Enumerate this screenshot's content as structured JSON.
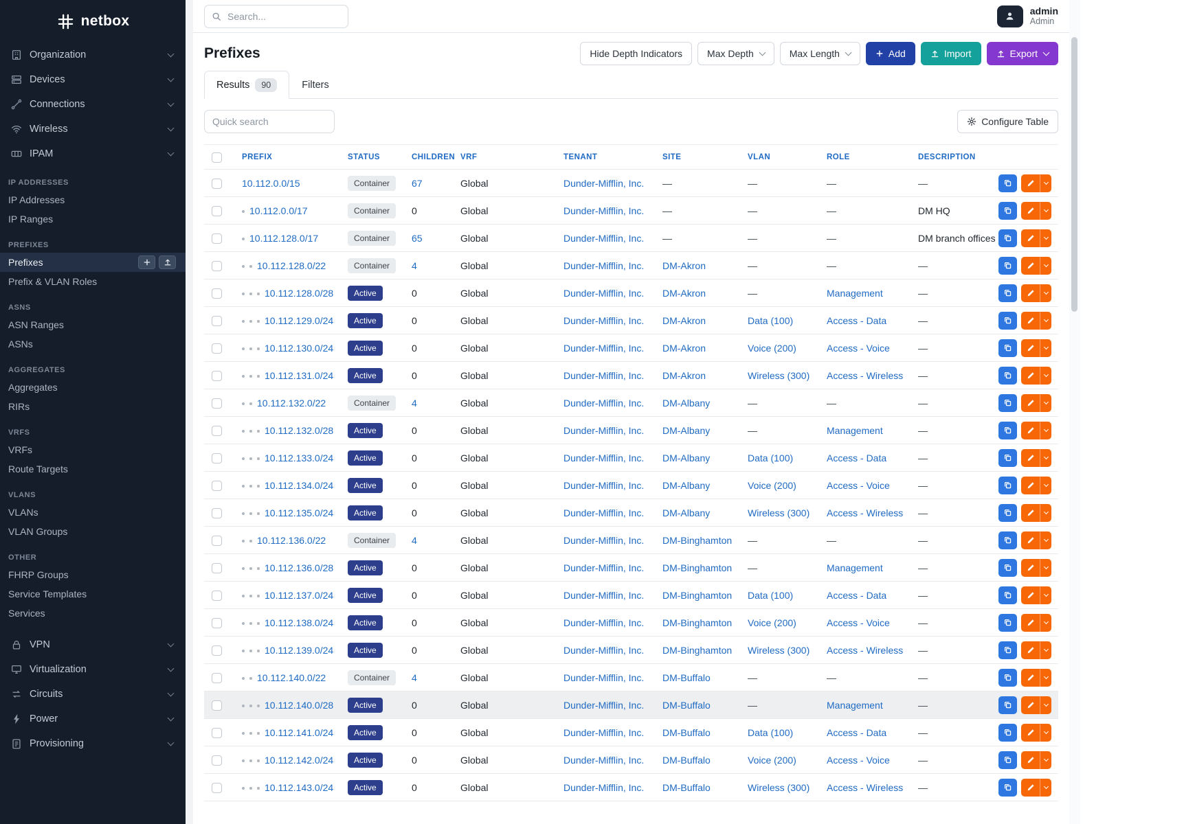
{
  "topbar": {
    "search_placeholder": "Search...",
    "user_name": "admin",
    "user_role": "Admin"
  },
  "sidebar": {
    "brand": "netbox",
    "top_items": [
      {
        "label": "Organization",
        "icon": "organization-icon"
      },
      {
        "label": "Devices",
        "icon": "devices-icon"
      },
      {
        "label": "Connections",
        "icon": "connections-icon"
      },
      {
        "label": "Wireless",
        "icon": "wireless-icon"
      },
      {
        "label": "IPAM",
        "icon": "ipam-icon"
      }
    ],
    "sections": [
      {
        "header": "IP ADDRESSES",
        "items": [
          {
            "label": "IP Addresses"
          },
          {
            "label": "IP Ranges"
          }
        ]
      },
      {
        "header": "PREFIXES",
        "items": [
          {
            "label": "Prefixes",
            "active": true
          },
          {
            "label": "Prefix & VLAN Roles"
          }
        ]
      },
      {
        "header": "ASNS",
        "items": [
          {
            "label": "ASN Ranges"
          },
          {
            "label": "ASNs"
          }
        ]
      },
      {
        "header": "AGGREGATES",
        "items": [
          {
            "label": "Aggregates"
          },
          {
            "label": "RIRs"
          }
        ]
      },
      {
        "header": "VRFS",
        "items": [
          {
            "label": "VRFs"
          },
          {
            "label": "Route Targets"
          }
        ]
      },
      {
        "header": "VLANS",
        "items": [
          {
            "label": "VLANs"
          },
          {
            "label": "VLAN Groups"
          }
        ]
      },
      {
        "header": "OTHER",
        "items": [
          {
            "label": "FHRP Groups"
          },
          {
            "label": "Service Templates"
          },
          {
            "label": "Services"
          }
        ]
      }
    ],
    "bottom_items": [
      {
        "label": "VPN",
        "icon": "vpn-icon"
      },
      {
        "label": "Virtualization",
        "icon": "virtualization-icon"
      },
      {
        "label": "Circuits",
        "icon": "circuits-icon"
      },
      {
        "label": "Power",
        "icon": "power-icon"
      },
      {
        "label": "Provisioning",
        "icon": "provisioning-icon"
      }
    ]
  },
  "page": {
    "title": "Prefixes",
    "tabs": [
      {
        "label": "Results",
        "badge": "90",
        "active": true
      },
      {
        "label": "Filters",
        "active": false
      }
    ],
    "toolbar": {
      "hide_depth_label": "Hide Depth Indicators",
      "max_depth_label": "Max Depth",
      "max_length_label": "Max Length",
      "add_label": "Add",
      "import_label": "Import",
      "export_label": "Export"
    },
    "quick_search_placeholder": "Quick search",
    "configure_table_label": "Configure Table"
  },
  "table": {
    "columns": [
      "PREFIX",
      "STATUS",
      "CHILDREN",
      "VRF",
      "TENANT",
      "SITE",
      "VLAN",
      "ROLE",
      "DESCRIPTION"
    ],
    "rows": [
      {
        "depth": 0,
        "prefix": "10.112.0.0/15",
        "status": "Container",
        "children": "67",
        "vrf": "Global",
        "tenant": "Dunder-Mifflin, Inc.",
        "site": "—",
        "vlan": "—",
        "role": "—",
        "description": "—"
      },
      {
        "depth": 1,
        "prefix": "10.112.0.0/17",
        "status": "Container",
        "children": "0",
        "vrf": "Global",
        "tenant": "Dunder-Mifflin, Inc.",
        "site": "—",
        "vlan": "—",
        "role": "—",
        "description": "DM HQ"
      },
      {
        "depth": 1,
        "prefix": "10.112.128.0/17",
        "status": "Container",
        "children": "65",
        "vrf": "Global",
        "tenant": "Dunder-Mifflin, Inc.",
        "site": "—",
        "vlan": "—",
        "role": "—",
        "description": "DM branch offices"
      },
      {
        "depth": 2,
        "prefix": "10.112.128.0/22",
        "status": "Container",
        "children": "4",
        "vrf": "Global",
        "tenant": "Dunder-Mifflin, Inc.",
        "site": "DM-Akron",
        "vlan": "—",
        "role": "—",
        "description": "—"
      },
      {
        "depth": 3,
        "prefix": "10.112.128.0/28",
        "status": "Active",
        "children": "0",
        "vrf": "Global",
        "tenant": "Dunder-Mifflin, Inc.",
        "site": "DM-Akron",
        "vlan": "—",
        "role": "Management",
        "description": "—"
      },
      {
        "depth": 3,
        "prefix": "10.112.129.0/24",
        "status": "Active",
        "children": "0",
        "vrf": "Global",
        "tenant": "Dunder-Mifflin, Inc.",
        "site": "DM-Akron",
        "vlan": "Data (100)",
        "role": "Access - Data",
        "description": "—"
      },
      {
        "depth": 3,
        "prefix": "10.112.130.0/24",
        "status": "Active",
        "children": "0",
        "vrf": "Global",
        "tenant": "Dunder-Mifflin, Inc.",
        "site": "DM-Akron",
        "vlan": "Voice (200)",
        "role": "Access - Voice",
        "description": "—"
      },
      {
        "depth": 3,
        "prefix": "10.112.131.0/24",
        "status": "Active",
        "children": "0",
        "vrf": "Global",
        "tenant": "Dunder-Mifflin, Inc.",
        "site": "DM-Akron",
        "vlan": "Wireless (300)",
        "role": "Access - Wireless",
        "description": "—"
      },
      {
        "depth": 2,
        "prefix": "10.112.132.0/22",
        "status": "Container",
        "children": "4",
        "vrf": "Global",
        "tenant": "Dunder-Mifflin, Inc.",
        "site": "DM-Albany",
        "vlan": "—",
        "role": "—",
        "description": "—"
      },
      {
        "depth": 3,
        "prefix": "10.112.132.0/28",
        "status": "Active",
        "children": "0",
        "vrf": "Global",
        "tenant": "Dunder-Mifflin, Inc.",
        "site": "DM-Albany",
        "vlan": "—",
        "role": "Management",
        "description": "—"
      },
      {
        "depth": 3,
        "prefix": "10.112.133.0/24",
        "status": "Active",
        "children": "0",
        "vrf": "Global",
        "tenant": "Dunder-Mifflin, Inc.",
        "site": "DM-Albany",
        "vlan": "Data (100)",
        "role": "Access - Data",
        "description": "—"
      },
      {
        "depth": 3,
        "prefix": "10.112.134.0/24",
        "status": "Active",
        "children": "0",
        "vrf": "Global",
        "tenant": "Dunder-Mifflin, Inc.",
        "site": "DM-Albany",
        "vlan": "Voice (200)",
        "role": "Access - Voice",
        "description": "—"
      },
      {
        "depth": 3,
        "prefix": "10.112.135.0/24",
        "status": "Active",
        "children": "0",
        "vrf": "Global",
        "tenant": "Dunder-Mifflin, Inc.",
        "site": "DM-Albany",
        "vlan": "Wireless (300)",
        "role": "Access - Wireless",
        "description": "—"
      },
      {
        "depth": 2,
        "prefix": "10.112.136.0/22",
        "status": "Container",
        "children": "4",
        "vrf": "Global",
        "tenant": "Dunder-Mifflin, Inc.",
        "site": "DM-Binghamton",
        "vlan": "—",
        "role": "—",
        "description": "—"
      },
      {
        "depth": 3,
        "prefix": "10.112.136.0/28",
        "status": "Active",
        "children": "0",
        "vrf": "Global",
        "tenant": "Dunder-Mifflin, Inc.",
        "site": "DM-Binghamton",
        "vlan": "—",
        "role": "Management",
        "description": "—"
      },
      {
        "depth": 3,
        "prefix": "10.112.137.0/24",
        "status": "Active",
        "children": "0",
        "vrf": "Global",
        "tenant": "Dunder-Mifflin, Inc.",
        "site": "DM-Binghamton",
        "vlan": "Data (100)",
        "role": "Access - Data",
        "description": "—"
      },
      {
        "depth": 3,
        "prefix": "10.112.138.0/24",
        "status": "Active",
        "children": "0",
        "vrf": "Global",
        "tenant": "Dunder-Mifflin, Inc.",
        "site": "DM-Binghamton",
        "vlan": "Voice (200)",
        "role": "Access - Voice",
        "description": "—"
      },
      {
        "depth": 3,
        "prefix": "10.112.139.0/24",
        "status": "Active",
        "children": "0",
        "vrf": "Global",
        "tenant": "Dunder-Mifflin, Inc.",
        "site": "DM-Binghamton",
        "vlan": "Wireless (300)",
        "role": "Access - Wireless",
        "description": "—"
      },
      {
        "depth": 2,
        "prefix": "10.112.140.0/22",
        "status": "Container",
        "children": "4",
        "vrf": "Global",
        "tenant": "Dunder-Mifflin, Inc.",
        "site": "DM-Buffalo",
        "vlan": "—",
        "role": "—",
        "description": "—"
      },
      {
        "depth": 3,
        "prefix": "10.112.140.0/28",
        "status": "Active",
        "children": "0",
        "vrf": "Global",
        "tenant": "Dunder-Mifflin, Inc.",
        "site": "DM-Buffalo",
        "vlan": "—",
        "role": "Management",
        "description": "—",
        "highlighted": true
      },
      {
        "depth": 3,
        "prefix": "10.112.141.0/24",
        "status": "Active",
        "children": "0",
        "vrf": "Global",
        "tenant": "Dunder-Mifflin, Inc.",
        "site": "DM-Buffalo",
        "vlan": "Data (100)",
        "role": "Access - Data",
        "description": "—"
      },
      {
        "depth": 3,
        "prefix": "10.112.142.0/24",
        "status": "Active",
        "children": "0",
        "vrf": "Global",
        "tenant": "Dunder-Mifflin, Inc.",
        "site": "DM-Buffalo",
        "vlan": "Voice (200)",
        "role": "Access - Voice",
        "description": "—"
      },
      {
        "depth": 3,
        "prefix": "10.112.143.0/24",
        "status": "Active",
        "children": "0",
        "vrf": "Global",
        "tenant": "Dunder-Mifflin, Inc.",
        "site": "DM-Buffalo",
        "vlan": "Wireless (300)",
        "role": "Access - Wireless",
        "description": "—"
      }
    ]
  },
  "colors": {
    "link": "#206bc4",
    "sidebar_bg": "#151d2b",
    "badge_active_bg": "#2c3e8c",
    "badge_container_bg": "#e9ecef",
    "add_button": "#2141a6",
    "import_button": "#14a09b",
    "export_button": "#8438cf",
    "edit_button": "#f76707",
    "copy_button": "#2e77e0"
  }
}
